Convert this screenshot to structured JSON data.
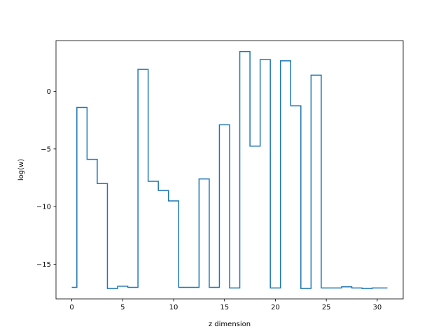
{
  "chart_data": {
    "type": "line",
    "drawstyle": "steps-mid",
    "title": "",
    "xlabel": "z dimension",
    "ylabel": "log(w)",
    "xlim": [
      -1.55,
      32.55
    ],
    "ylim": [
      -18.0,
      4.4
    ],
    "xticks": [
      0,
      5,
      10,
      15,
      20,
      25,
      30
    ],
    "yticks": [
      -15,
      -10,
      -5,
      0
    ],
    "ytick_labels": [
      "−15",
      "−10",
      "−5",
      "0"
    ],
    "grid": false,
    "legend": "none",
    "series": [
      {
        "color": "#1f77b4",
        "x": [
          0,
          1,
          2,
          3,
          4,
          5,
          6,
          7,
          8,
          9,
          10,
          11,
          12,
          13,
          14,
          15,
          16,
          17,
          18,
          19,
          20,
          21,
          22,
          23,
          24,
          25,
          26,
          27,
          28,
          29,
          30,
          31
        ],
        "values": [
          -17.0,
          -1.4,
          -5.9,
          -8.0,
          -17.1,
          -16.9,
          -17.0,
          1.9,
          -7.8,
          -8.6,
          -9.5,
          -17.0,
          -17.0,
          -7.6,
          -17.0,
          -2.9,
          -17.05,
          3.45,
          -4.75,
          2.75,
          -17.05,
          2.65,
          -1.25,
          -17.1,
          1.4,
          -17.05,
          -17.05,
          -16.95,
          -17.05,
          -17.1,
          -17.05,
          -17.05
        ]
      }
    ]
  }
}
